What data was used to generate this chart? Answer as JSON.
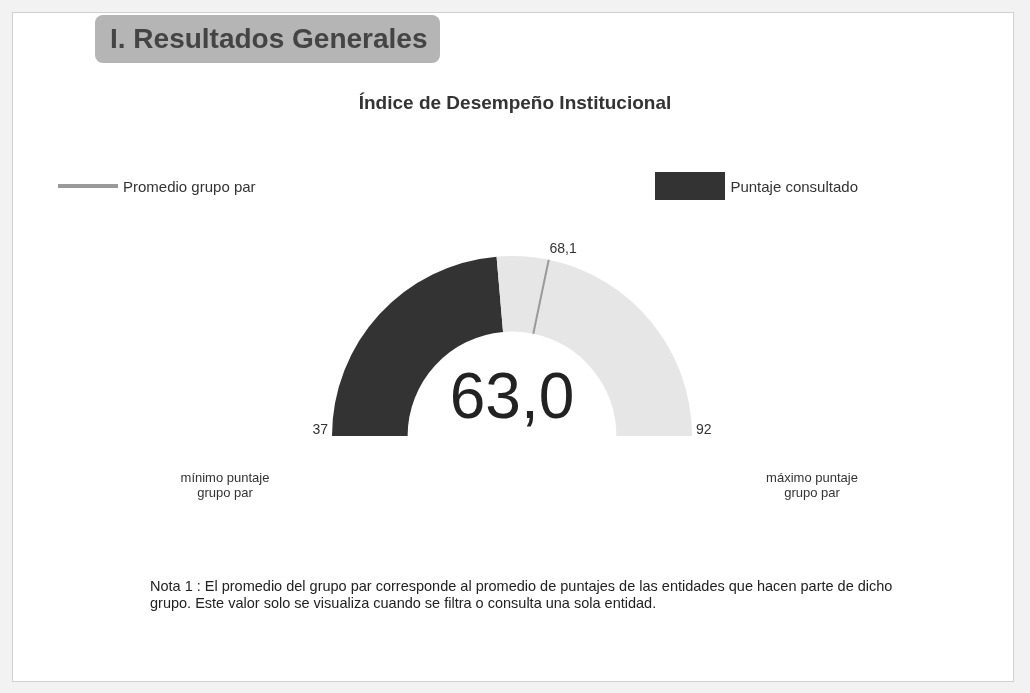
{
  "chart_data": {
    "type": "donut",
    "title": "I. Resultados Generales",
    "subtitle": "Índice de Desempeño Institucional",
    "categories": [
      "Puntaje consultado",
      null,
      null
    ],
    "values": [
      47.27,
      9.27,
      43.46
    ],
    "colors": [
      "#333333",
      "#e6e6e6",
      "#e6e6e6"
    ],
    "legend": "top",
    "annotations": [
      "Promedio grupo par",
      "68,1",
      "63,0",
      "37",
      "92",
      "mínimo puntaje grupo par",
      "máximo puntaje grupo par",
      "Nota 1 : El promedio del grupo par corresponde al promedio de puntajes de las entidades que hacen parte de dicho grupo.  Este valor solo se visualiza cuando se filtra o consulta una sola entidad."
    ]
  }
}
